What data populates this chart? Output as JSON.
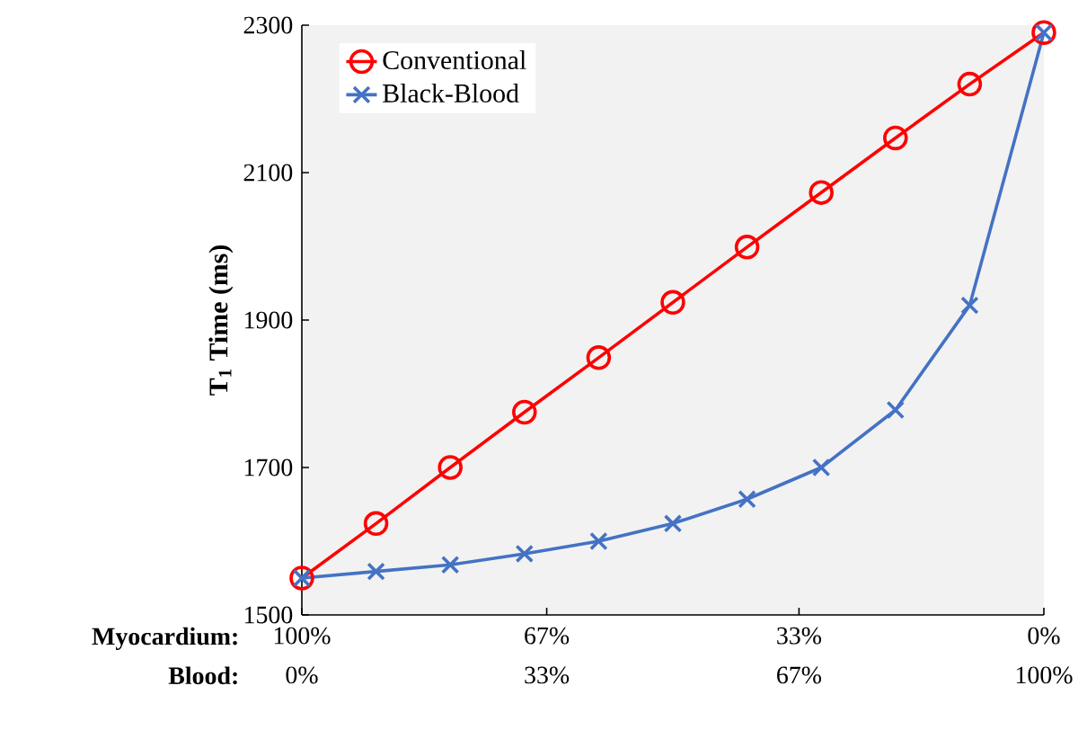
{
  "chart_data": {
    "type": "line",
    "ylabel": "T$_{1}$ Time (ms)",
    "xlabel": "Myocardium:",
    "x2label": "Blood:",
    "x": [
      100,
      90,
      80,
      70,
      60,
      50,
      40,
      30,
      20,
      10,
      0
    ],
    "series": [
      {
        "name": "Conventional",
        "color": "#ff0000",
        "marker": "circle",
        "values": [
          1550,
          1624,
          1700,
          1775,
          1849,
          1924,
          1999,
          2073,
          2147,
          2220,
          2290
        ]
      },
      {
        "name": "Black-Blood",
        "color": "#4472c4",
        "marker": "cross",
        "values": [
          1550,
          1559,
          1568,
          1583,
          1600,
          1624,
          1657,
          1700,
          1778,
          1920,
          2290
        ]
      }
    ],
    "xlim": [
      100,
      0
    ],
    "ylim": [
      1500,
      2300
    ],
    "yticks": [
      1500,
      1700,
      1900,
      2100,
      2300
    ],
    "xticks": [
      {
        "value": 100,
        "label": "100%"
      },
      {
        "value": 67,
        "label": "67%"
      },
      {
        "value": 33,
        "label": "33%"
      },
      {
        "value": 0,
        "label": "0%"
      }
    ],
    "x2lim": [
      0,
      100
    ],
    "x2ticks": [
      {
        "value": 0,
        "label": "0%"
      },
      {
        "value": 33,
        "label": "33%"
      },
      {
        "value": 67,
        "label": "67%"
      },
      {
        "value": 100,
        "label": "100%"
      }
    ],
    "grid": false,
    "legend": "top left",
    "line_style": "solid"
  }
}
